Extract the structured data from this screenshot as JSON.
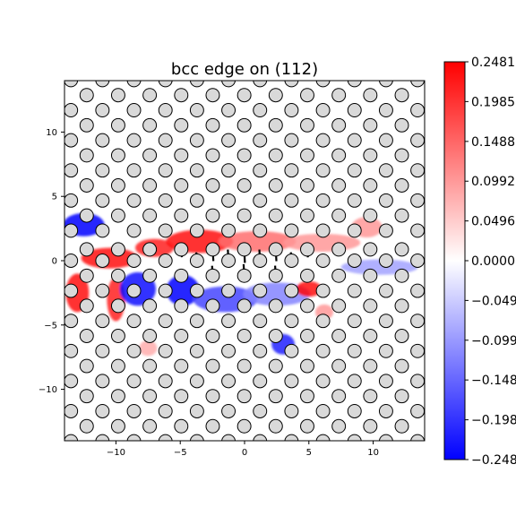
{
  "chart_data": {
    "type": "heatmap",
    "title": "bcc edge on (112)",
    "xlim": [
      -14,
      14
    ],
    "ylim": [
      -14,
      14
    ],
    "x_ticks": [
      -10,
      -5,
      0,
      5,
      10
    ],
    "y_ticks": [
      -10,
      -5,
      0,
      5,
      10
    ],
    "x_tick_labels": [
      "−10",
      "−5",
      "0",
      "5",
      "10"
    ],
    "y_tick_labels": [
      "−10",
      "−5",
      "0",
      "5",
      "10"
    ],
    "colorbar": {
      "cmap": "bwr",
      "vmin": -0.2481,
      "vmax": 0.2481,
      "ticks": [
        0.2481,
        0.1985,
        0.1488,
        0.0992,
        0.0496,
        0.0,
        -0.0496,
        -0.0992,
        -0.1488,
        -0.1985,
        -0.2481
      ],
      "tick_labels": [
        "0.2481",
        "0.1985",
        "0.1488",
        "0.0992",
        "0.0496",
        "0.0000",
        "−0.0496",
        "−0.0992",
        "−0.1488",
        "−0.1985",
        "−0.2481"
      ]
    },
    "lattice": {
      "a1": [
        2.45,
        0.0
      ],
      "a2": [
        1.225,
        1.17
      ],
      "origin": [
        1.2,
        0.0
      ],
      "compression_band_y": [
        -0.6,
        0.6
      ]
    },
    "strain_blobs": [
      {
        "x": -12.5,
        "y": 2.8,
        "value": -0.25,
        "sx": 1.6,
        "sy": 0.9
      },
      {
        "x": -10.5,
        "y": 0.2,
        "value": 0.24,
        "sx": 2.2,
        "sy": 0.8
      },
      {
        "x": -7.0,
        "y": 1.0,
        "value": 0.22,
        "sx": 1.5,
        "sy": 0.7
      },
      {
        "x": -3.5,
        "y": 1.5,
        "value": 0.23,
        "sx": 2.6,
        "sy": 0.9
      },
      {
        "x": 1.0,
        "y": 1.5,
        "value": 0.14,
        "sx": 3.0,
        "sy": 0.8
      },
      {
        "x": 6.0,
        "y": 1.4,
        "value": 0.1,
        "sx": 3.0,
        "sy": 0.7
      },
      {
        "x": 9.5,
        "y": 2.6,
        "value": 0.1,
        "sx": 1.2,
        "sy": 0.8
      },
      {
        "x": -13.0,
        "y": -2.5,
        "value": 0.23,
        "sx": 0.9,
        "sy": 1.5
      },
      {
        "x": -10.0,
        "y": -3.0,
        "value": 0.22,
        "sx": 0.7,
        "sy": 1.7
      },
      {
        "x": -8.3,
        "y": -2.2,
        "value": -0.24,
        "sx": 1.4,
        "sy": 1.3
      },
      {
        "x": -4.8,
        "y": -2.3,
        "value": -0.25,
        "sx": 1.3,
        "sy": 1.2
      },
      {
        "x": -1.5,
        "y": -3.0,
        "value": -0.18,
        "sx": 2.5,
        "sy": 1.0
      },
      {
        "x": 2.5,
        "y": -2.6,
        "value": -0.12,
        "sx": 2.6,
        "sy": 0.9
      },
      {
        "x": 5.0,
        "y": -2.2,
        "value": 0.24,
        "sx": 1.0,
        "sy": 0.6
      },
      {
        "x": 3.0,
        "y": -6.5,
        "value": -0.22,
        "sx": 0.9,
        "sy": 0.8
      },
      {
        "x": -7.5,
        "y": -6.8,
        "value": 0.08,
        "sx": 0.7,
        "sy": 0.6
      },
      {
        "x": 6.2,
        "y": -4.0,
        "value": 0.1,
        "sx": 0.7,
        "sy": 0.6
      },
      {
        "x": 10.5,
        "y": -0.5,
        "value": -0.09,
        "sx": 3.0,
        "sy": 0.6
      }
    ],
    "displacement_rows": [
      {
        "y": 0.9,
        "x_from": -13.5,
        "x_to": 13.5,
        "dy_core": -1.6,
        "direction": "down"
      },
      {
        "y": -0.2,
        "x_from": -13.5,
        "x_to": 13.5,
        "dy_core": 1.2,
        "direction": "up"
      }
    ]
  }
}
